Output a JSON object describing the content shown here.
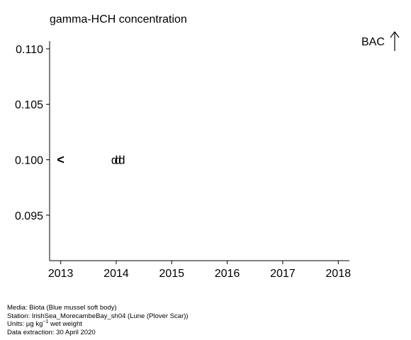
{
  "chart_data": {
    "type": "scatter",
    "title": "gamma-HCH concentration",
    "reference_label": "BAC",
    "xlabel": "",
    "ylabel": "",
    "xlim": [
      2012.8,
      2018.2
    ],
    "ylim": [
      0.0909,
      0.1107
    ],
    "x_ticks": [
      "2013",
      "2014",
      "2015",
      "2016",
      "2017",
      "2018"
    ],
    "y_ticks": [
      "0.095",
      "0.100",
      "0.105",
      "0.110"
    ],
    "grid": false,
    "points": [
      {
        "x": 2013.0,
        "y": 0.1,
        "marker": "<"
      },
      {
        "x": 2013.97,
        "y": 0.1,
        "marker": "d"
      },
      {
        "x": 2014.03,
        "y": 0.1,
        "marker": "d"
      },
      {
        "x": 2014.1,
        "y": 0.1,
        "marker": "d"
      }
    ]
  },
  "footer": {
    "media": "Media: Biota (Blue mussel soft body)",
    "station": "Station: IrishSea_MorecambeBay_sh04 (Lune (Plover Scar))",
    "units_prefix": "Units:  µg kg",
    "units_sup": "−1",
    "units_suffix": " wet weight",
    "extraction": "Data extraction: 30 April 2020"
  }
}
